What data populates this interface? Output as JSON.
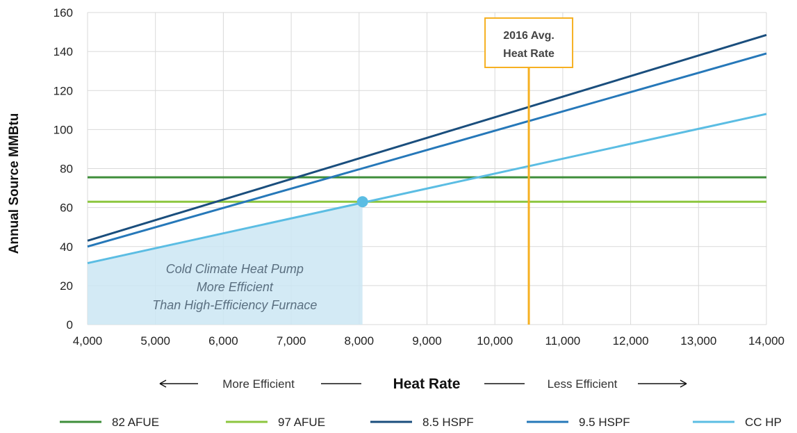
{
  "chart_data": {
    "type": "line",
    "title": "",
    "xlabel": "Heat Rate",
    "ylabel": "Annual Source MMBtu",
    "xlim": [
      4000,
      14000
    ],
    "ylim": [
      0,
      160
    ],
    "x_ticks": [
      4000,
      5000,
      6000,
      7000,
      8000,
      9000,
      10000,
      11000,
      12000,
      13000,
      14000
    ],
    "x_tick_labels": [
      "4,000",
      "5,000",
      "6,000",
      "7,000",
      "8,000",
      "9,000",
      "10,000",
      "11,000",
      "12,000",
      "13,000",
      "14,000"
    ],
    "y_ticks": [
      0,
      20,
      40,
      60,
      80,
      100,
      120,
      140,
      160
    ],
    "y_tick_labels": [
      "0",
      "20",
      "40",
      "60",
      "80",
      "100",
      "120",
      "140",
      "160"
    ],
    "grid": true,
    "legend_position": "bottom",
    "x_direction_labels": {
      "left": "More Efficient",
      "right": "Less Efficient"
    },
    "series": [
      {
        "name": "82 AFUE",
        "color": "#3e8e3a",
        "x": [
          4000,
          14000
        ],
        "y": [
          75.5,
          75.5
        ]
      },
      {
        "name": "97 AFUE",
        "color": "#8cc63f",
        "x": [
          4000,
          14000
        ],
        "y": [
          63.0,
          63.0
        ]
      },
      {
        "name": "8.5 HSPF",
        "color": "#1a4e7d",
        "x": [
          4000,
          14000
        ],
        "y": [
          43.0,
          148.5
        ]
      },
      {
        "name": "9.5 HSPF",
        "color": "#2678b9",
        "x": [
          4000,
          14000
        ],
        "y": [
          40.0,
          139.0
        ]
      },
      {
        "name": "CC HP",
        "color": "#5bbde3",
        "x": [
          4000,
          14000
        ],
        "y": [
          31.5,
          108.0
        ]
      }
    ],
    "vertical_marker": {
      "x": 10500,
      "color": "#f6b021",
      "label_line1": "2016 Avg.",
      "label_line2": "Heat Rate"
    },
    "crossover_point": {
      "x": 8050,
      "y": 63.0,
      "color": "#5bbde3"
    },
    "shaded_region": {
      "x": [
        4000,
        8050
      ],
      "color": "#cbe6f3",
      "annotation_lines": [
        "Cold Climate Heat Pump",
        "More Efficient",
        "Than High-Efficiency Furnace"
      ]
    }
  }
}
